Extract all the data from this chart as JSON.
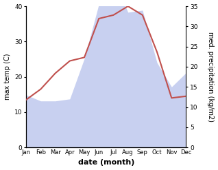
{
  "months": [
    "Jan",
    "Feb",
    "Mar",
    "Apr",
    "May",
    "Jun",
    "Jul",
    "Aug",
    "Sep",
    "Oct",
    "Nov",
    "Dec"
  ],
  "temp": [
    13.5,
    16.5,
    21.0,
    24.5,
    25.5,
    36.5,
    37.5,
    40.0,
    37.5,
    27.0,
    14.0,
    14.5
  ],
  "precip": [
    13.0,
    11.5,
    11.5,
    12.0,
    22.0,
    35.5,
    42.0,
    33.5,
    34.0,
    21.0,
    15.0,
    18.5
  ],
  "temp_color": "#c0504d",
  "precip_fill_color": "#c8d0f0",
  "background_color": "#ffffff",
  "left_ylabel": "max temp (C)",
  "right_ylabel": "med. precipitation (kg/m2)",
  "xlabel": "date (month)",
  "ylim_left": [
    0,
    40
  ],
  "ylim_right": [
    0,
    35
  ],
  "label_fontsize": 7,
  "xlabel_fontsize": 8
}
